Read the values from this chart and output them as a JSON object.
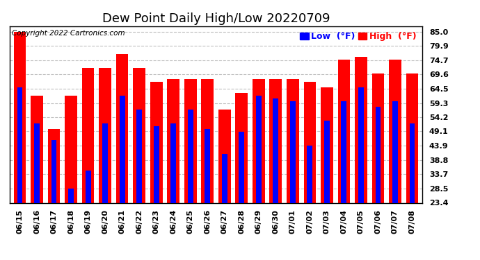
{
  "title": "Dew Point Daily High/Low 20220709",
  "copyright": "Copyright 2022 Cartronics.com",
  "dates": [
    "06/15",
    "06/16",
    "06/17",
    "06/18",
    "06/19",
    "06/20",
    "06/21",
    "06/22",
    "06/23",
    "06/24",
    "06/25",
    "06/26",
    "06/27",
    "06/28",
    "06/29",
    "06/30",
    "07/01",
    "07/02",
    "07/03",
    "07/04",
    "07/05",
    "07/06",
    "07/07",
    "07/08"
  ],
  "high": [
    85.0,
    62.0,
    50.0,
    62.0,
    72.0,
    72.0,
    77.0,
    72.0,
    67.0,
    68.0,
    68.0,
    68.0,
    57.0,
    63.0,
    68.0,
    68.0,
    68.0,
    67.0,
    65.0,
    75.0,
    76.0,
    70.0,
    75.0,
    70.0
  ],
  "low": [
    65.0,
    52.0,
    46.0,
    28.5,
    35.0,
    52.0,
    62.0,
    57.0,
    51.0,
    52.0,
    57.0,
    50.0,
    41.0,
    49.0,
    62.0,
    61.0,
    60.0,
    44.0,
    53.0,
    60.0,
    65.0,
    58.0,
    60.0,
    52.0
  ],
  "ylim_min": 23.4,
  "ylim_max": 87.0,
  "yticks": [
    23.4,
    28.5,
    33.7,
    38.8,
    43.9,
    49.1,
    54.2,
    59.3,
    64.5,
    69.6,
    74.7,
    79.9,
    85.0
  ],
  "high_color": "#ff0000",
  "low_color": "#0000ff",
  "grid_color": "#c0c0c0",
  "bg_color": "#ffffff",
  "legend_low_label": "Low  (°F)",
  "legend_high_label": "High  (°F)",
  "title_fontsize": 13,
  "copyright_fontsize": 7.5,
  "tick_fontsize": 8,
  "legend_fontsize": 9
}
